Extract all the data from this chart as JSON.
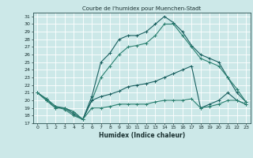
{
  "title": "Courbe de l'humidex pour Muenchen-Stadt",
  "xlabel": "Humidex (Indice chaleur)",
  "xlim": [
    -0.5,
    23.5
  ],
  "ylim": [
    17,
    31.5
  ],
  "yticks": [
    17,
    18,
    19,
    20,
    21,
    22,
    23,
    24,
    25,
    26,
    27,
    28,
    29,
    30,
    31
  ],
  "xticks": [
    0,
    1,
    2,
    3,
    4,
    5,
    6,
    7,
    8,
    9,
    10,
    11,
    12,
    13,
    14,
    15,
    16,
    17,
    18,
    19,
    20,
    21,
    22,
    23
  ],
  "bg_color": "#cce8e8",
  "grid_color": "#ffffff",
  "line_color_dark": "#1a6060",
  "line_color_mid": "#2a8070",
  "line1_x": [
    0,
    1,
    2,
    3,
    4,
    5,
    6,
    7,
    8,
    9,
    10,
    11,
    12,
    13,
    14,
    15,
    16,
    17,
    18,
    19,
    20,
    21,
    22,
    23
  ],
  "line1_y": [
    21.0,
    20.2,
    19.2,
    19.0,
    18.2,
    17.5,
    20.5,
    25.0,
    26.2,
    28.0,
    28.5,
    28.5,
    29.0,
    30.0,
    31.0,
    30.2,
    29.0,
    27.2,
    26.0,
    25.5,
    25.0,
    23.0,
    21.0,
    19.8
  ],
  "line2_x": [
    0,
    1,
    2,
    3,
    4,
    5,
    6,
    7,
    8,
    9,
    10,
    11,
    12,
    13,
    14,
    15,
    16,
    17,
    18,
    19,
    20,
    21,
    22,
    23
  ],
  "line2_y": [
    21.0,
    20.2,
    19.2,
    18.8,
    18.0,
    17.5,
    20.0,
    23.0,
    24.5,
    26.0,
    27.0,
    27.2,
    27.5,
    28.5,
    30.0,
    30.0,
    28.5,
    27.0,
    25.5,
    25.0,
    24.5,
    23.0,
    21.5,
    19.8
  ],
  "line3_x": [
    0,
    1,
    2,
    3,
    4,
    5,
    6,
    7,
    8,
    9,
    10,
    11,
    12,
    13,
    14,
    15,
    16,
    17,
    18,
    19,
    20,
    21,
    22,
    23
  ],
  "line3_y": [
    21.0,
    20.0,
    19.0,
    19.0,
    18.5,
    17.5,
    20.0,
    20.5,
    20.8,
    21.2,
    21.8,
    22.0,
    22.2,
    22.5,
    23.0,
    23.5,
    24.0,
    24.5,
    19.0,
    19.5,
    20.0,
    21.0,
    20.0,
    19.5
  ],
  "line4_x": [
    0,
    1,
    2,
    3,
    4,
    5,
    6,
    7,
    8,
    9,
    10,
    11,
    12,
    13,
    14,
    15,
    16,
    17,
    18,
    19,
    20,
    21,
    22,
    23
  ],
  "line4_y": [
    21.0,
    20.0,
    19.0,
    19.0,
    18.5,
    17.5,
    19.0,
    19.0,
    19.2,
    19.5,
    19.5,
    19.5,
    19.5,
    19.8,
    20.0,
    20.0,
    20.0,
    20.2,
    19.0,
    19.2,
    19.5,
    20.0,
    20.0,
    19.5
  ]
}
